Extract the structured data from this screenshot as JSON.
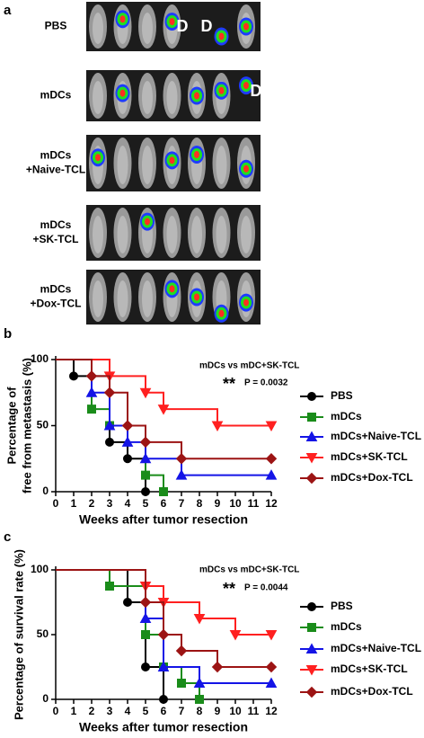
{
  "panel_a": {
    "label": "a",
    "rows": [
      [
        "PBS"
      ],
      [
        "mDCs"
      ],
      [
        "mDCs",
        "+Naive-TCL"
      ],
      [
        "mDCs",
        "+SK-TCL"
      ],
      [
        "mDCs",
        "+Dox-TCL"
      ]
    ],
    "dead_marks": [
      "D",
      "D",
      "D"
    ]
  },
  "chart_data": [
    {
      "type": "survival",
      "panel": "b",
      "ylabel": [
        "Percentage of",
        "free from metastasis (%)"
      ],
      "xlabel": "Weeks after tumor resection",
      "annotation": "mDCs vs mDC+SK-TCL",
      "significance": "**",
      "p_value": "P = 0.0032",
      "xlim": [
        0,
        12
      ],
      "ylim": [
        0,
        100
      ],
      "xticks": [
        0,
        1,
        2,
        3,
        4,
        5,
        6,
        7,
        8,
        9,
        10,
        11,
        12
      ],
      "yticks": [
        0,
        50,
        100
      ],
      "series": [
        {
          "name": "PBS",
          "color": "#000000",
          "marker": "circle",
          "x": [
            0,
            1,
            3,
            4,
            5
          ],
          "values": [
            100,
            87.5,
            37.5,
            25,
            0
          ]
        },
        {
          "name": "mDCs",
          "color": "#1a8c1a",
          "marker": "square",
          "x": [
            0,
            2,
            3,
            5,
            6
          ],
          "values": [
            100,
            62.5,
            50,
            12.5,
            0
          ]
        },
        {
          "name": "mDCs+Naive-TCL",
          "color": "#1414e6",
          "marker": "triangle-up",
          "x": [
            0,
            2,
            3,
            4,
            5,
            7,
            12
          ],
          "values": [
            100,
            75,
            50,
            37.5,
            25,
            12.5,
            12.5
          ]
        },
        {
          "name": "mDCs+SK-TCL",
          "color": "#ff2020",
          "marker": "triangle-down",
          "x": [
            0,
            3,
            5,
            6,
            9,
            12
          ],
          "values": [
            100,
            87.5,
            75,
            62.5,
            50,
            50
          ]
        },
        {
          "name": "mDCs+Dox-TCL",
          "color": "#9c1414",
          "marker": "diamond",
          "x": [
            0,
            2,
            3,
            4,
            5,
            7,
            12
          ],
          "values": [
            100,
            87.5,
            75,
            50,
            37.5,
            25,
            25
          ]
        }
      ]
    },
    {
      "type": "survival",
      "panel": "c",
      "ylabel": [
        "Percentage of survival rate (%)"
      ],
      "xlabel": "Weeks after tumor resection",
      "annotation": "mDCs vs mDC+SK-TCL",
      "significance": "**",
      "p_value": "P = 0.0044",
      "xlim": [
        0,
        12
      ],
      "ylim": [
        0,
        100
      ],
      "xticks": [
        0,
        1,
        2,
        3,
        4,
        5,
        6,
        7,
        8,
        9,
        10,
        11,
        12
      ],
      "yticks": [
        0,
        50,
        100
      ],
      "series": [
        {
          "name": "PBS",
          "color": "#000000",
          "marker": "circle",
          "x": [
            0,
            4,
            5,
            6
          ],
          "values": [
            100,
            75,
            25,
            0
          ]
        },
        {
          "name": "mDCs",
          "color": "#1a8c1a",
          "marker": "square",
          "x": [
            0,
            3,
            5,
            6,
            7,
            8
          ],
          "values": [
            100,
            87.5,
            50,
            25,
            12.5,
            0
          ]
        },
        {
          "name": "mDCs+Naive-TCL",
          "color": "#1414e6",
          "marker": "triangle-up",
          "x": [
            0,
            5,
            6,
            8,
            12
          ],
          "values": [
            100,
            62.5,
            25,
            12.5,
            12.5
          ]
        },
        {
          "name": "mDCs+SK-TCL",
          "color": "#ff2020",
          "marker": "triangle-down",
          "x": [
            0,
            5,
            6,
            8,
            10,
            12
          ],
          "values": [
            100,
            87.5,
            75,
            62.5,
            50,
            50
          ]
        },
        {
          "name": "mDCs+Dox-TCL",
          "color": "#9c1414",
          "marker": "diamond",
          "x": [
            0,
            5,
            6,
            7,
            9,
            12
          ],
          "values": [
            100,
            75,
            50,
            37.5,
            25,
            25
          ]
        }
      ]
    }
  ]
}
